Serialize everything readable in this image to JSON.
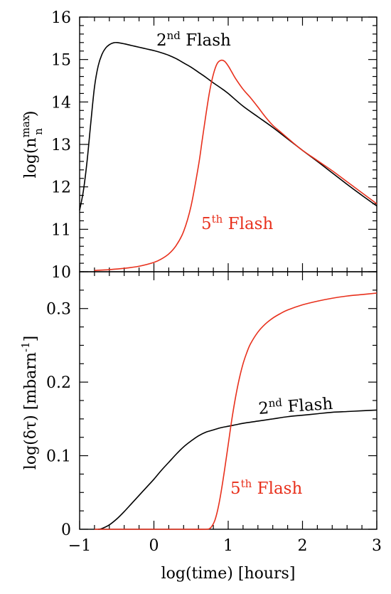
{
  "colors": {
    "black": "#000000",
    "red": "#e8301c"
  },
  "chart_data": [
    {
      "type": "line",
      "xlim": [
        -1,
        3
      ],
      "ylim": [
        10,
        16
      ],
      "xtick_values": [
        -1,
        0,
        1,
        2,
        3
      ],
      "ytick_values": [
        10,
        11,
        12,
        13,
        14,
        15,
        16
      ],
      "ytick_labels": [
        "10",
        "11",
        "12",
        "13",
        "14",
        "15",
        "16"
      ],
      "ylabel": {
        "pre": "log(n",
        "sup": "max",
        "sub": "n",
        "post": ")"
      },
      "annotations": [
        {
          "series": 0,
          "base": "2",
          "sup": "nd",
          "text": " Flash"
        },
        {
          "series": 1,
          "base": "5",
          "sup": "th",
          "text": " Flash"
        }
      ],
      "series": [
        {
          "color": "#000000",
          "x": [
            -1.0,
            -0.95,
            -0.9,
            -0.85,
            -0.8,
            -0.75,
            -0.7,
            -0.65,
            -0.6,
            -0.55,
            -0.5,
            -0.4,
            -0.3,
            -0.2,
            -0.1,
            0.0,
            0.1,
            0.2,
            0.3,
            0.4,
            0.5,
            0.6,
            0.7,
            0.8,
            0.9,
            1.0,
            1.2,
            1.4,
            1.6,
            1.8,
            2.0,
            2.2,
            2.4,
            2.6,
            2.8,
            3.0
          ],
          "y": [
            11.45,
            11.9,
            12.6,
            13.5,
            14.35,
            14.85,
            15.12,
            15.27,
            15.35,
            15.39,
            15.4,
            15.37,
            15.33,
            15.29,
            15.25,
            15.21,
            15.16,
            15.1,
            15.02,
            14.92,
            14.82,
            14.7,
            14.58,
            14.45,
            14.33,
            14.2,
            13.9,
            13.65,
            13.4,
            13.13,
            12.86,
            12.6,
            12.33,
            12.06,
            11.8,
            11.55
          ]
        },
        {
          "color": "#e8301c",
          "x": [
            -0.8,
            -0.6,
            -0.4,
            -0.2,
            0.0,
            0.1,
            0.2,
            0.3,
            0.4,
            0.5,
            0.6,
            0.65,
            0.7,
            0.75,
            0.8,
            0.85,
            0.9,
            0.95,
            1.0,
            1.05,
            1.1,
            1.2,
            1.3,
            1.4,
            1.5,
            1.6,
            1.7,
            1.8,
            1.9,
            2.0,
            2.2,
            2.4,
            2.6,
            2.8,
            3.0
          ],
          "y": [
            10.03,
            10.05,
            10.08,
            10.13,
            10.22,
            10.3,
            10.42,
            10.62,
            10.95,
            11.55,
            12.5,
            13.1,
            13.7,
            14.25,
            14.65,
            14.9,
            14.98,
            14.96,
            14.85,
            14.7,
            14.55,
            14.3,
            14.1,
            13.88,
            13.65,
            13.45,
            13.3,
            13.15,
            13.0,
            12.86,
            12.62,
            12.38,
            12.12,
            11.86,
            11.6
          ]
        }
      ]
    },
    {
      "type": "line",
      "xlim": [
        -1,
        3
      ],
      "ylim": [
        0,
        0.35
      ],
      "xtick_values": [
        -1,
        0,
        1,
        2,
        3
      ],
      "xtick_labels": [
        "−1",
        "0",
        "1",
        "2",
        "3"
      ],
      "ytick_values": [
        0,
        0.1,
        0.2,
        0.3
      ],
      "ytick_labels": [
        "0",
        "0.1",
        "0.2",
        "0.3"
      ],
      "ylabel": {
        "pre": "log(δτ)  [mbarn",
        "sup": "-1",
        "post": "]"
      },
      "xlabel": "log(time)  [hours]",
      "annotations": [
        {
          "series": 0,
          "base": "2",
          "sup": "nd",
          "text": " Flash"
        },
        {
          "series": 1,
          "base": "5",
          "sup": "th",
          "text": " Flash"
        }
      ],
      "series": [
        {
          "color": "#000000",
          "x": [
            -0.75,
            -0.7,
            -0.6,
            -0.5,
            -0.4,
            -0.3,
            -0.2,
            -0.1,
            0.0,
            0.1,
            0.2,
            0.3,
            0.4,
            0.5,
            0.6,
            0.7,
            0.8,
            0.9,
            1.0,
            1.1,
            1.2,
            1.4,
            1.6,
            1.8,
            2.0,
            2.2,
            2.4,
            2.6,
            2.8,
            3.0
          ],
          "y": [
            0.0,
            0.001,
            0.006,
            0.014,
            0.024,
            0.035,
            0.046,
            0.057,
            0.068,
            0.08,
            0.091,
            0.102,
            0.112,
            0.12,
            0.127,
            0.132,
            0.135,
            0.138,
            0.14,
            0.142,
            0.144,
            0.147,
            0.15,
            0.153,
            0.155,
            0.157,
            0.159,
            0.16,
            0.161,
            0.162
          ]
        },
        {
          "color": "#e8301c",
          "x": [
            -0.8,
            0.0,
            0.5,
            0.7,
            0.75,
            0.78,
            0.82,
            0.86,
            0.9,
            0.95,
            1.0,
            1.05,
            1.1,
            1.15,
            1.2,
            1.25,
            1.3,
            1.4,
            1.5,
            1.6,
            1.7,
            1.8,
            2.0,
            2.2,
            2.4,
            2.6,
            2.8,
            3.0
          ],
          "y": [
            0.0,
            0.0,
            0.0,
            0.0,
            0.001,
            0.004,
            0.012,
            0.027,
            0.048,
            0.08,
            0.115,
            0.15,
            0.18,
            0.205,
            0.225,
            0.24,
            0.252,
            0.268,
            0.279,
            0.287,
            0.293,
            0.298,
            0.305,
            0.31,
            0.314,
            0.317,
            0.319,
            0.321
          ]
        }
      ]
    }
  ]
}
